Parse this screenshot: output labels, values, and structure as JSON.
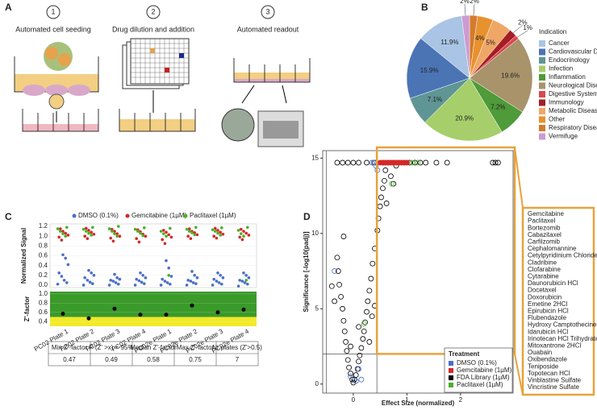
{
  "panel_labels": [
    "A",
    "B",
    "C",
    "D"
  ],
  "panel_a": {
    "steps": [
      {
        "number": "1",
        "label": "Automated cell seeding"
      },
      {
        "number": "2",
        "label": "Drug dilution and addition"
      },
      {
        "number": "3",
        "label": "Automated readout"
      }
    ]
  },
  "chart_data": [
    {
      "type": "pie",
      "legend_title": "Indication",
      "categories": [
        "Respiratory Disease",
        "Other",
        "Metabolic Disease",
        "Immunology",
        "Digestive System Disease",
        "Neurological Disease",
        "Inflammation",
        "Infection",
        "Endocrinology",
        "Cardiovascular Disease",
        "Cancer",
        "Vermifuge"
      ],
      "values": [
        2,
        4,
        5,
        2,
        1,
        19.6,
        7.2,
        20.9,
        7.1,
        15.9,
        11.9,
        2
      ],
      "value_labels": [
        "2%",
        "4%",
        "5%",
        "2%",
        "1%",
        "19.6%",
        "7.2%",
        "20.9%",
        "7.1%",
        "15.9%",
        "11.9%",
        "2%"
      ],
      "colors": [
        "#d47a2c",
        "#e8912f",
        "#efa766",
        "#a51d25",
        "#d8484f",
        "#a8936b",
        "#4f9a39",
        "#a6cf6b",
        "#5f9594",
        "#4b74b5",
        "#a9c4e4",
        "#cc9bd1"
      ],
      "legend_order": [
        10,
        9,
        8,
        7,
        6,
        5,
        4,
        3,
        2,
        1,
        0,
        11
      ]
    },
    {
      "type": "strip",
      "y_label": "Normalized Signal",
      "ylim": [
        -0.05,
        1.25
      ],
      "yticks": [
        {
          "value": 0,
          "label": "0.0"
        },
        0.2,
        0.4,
        0.6,
        0.8,
        {
          "value": 1,
          "label": "1.0"
        },
        1.2
      ],
      "series": [
        {
          "name": "DMSO (0.1%)",
          "color": "#4a6fc7",
          "values": [
            [
              0.02,
              0.05,
              0.1,
              0.18,
              0.25,
              0.42,
              0.55,
              0.62
            ],
            [
              0.0,
              0.03,
              0.06,
              0.1,
              0.15,
              0.2,
              0.25,
              0.3
            ],
            [
              0.0,
              0.02,
              0.05,
              0.08,
              0.1,
              0.12,
              0.15,
              0.22
            ],
            [
              0.0,
              0.03,
              0.06,
              0.09,
              0.12,
              0.15,
              0.2,
              0.25
            ],
            [
              0.0,
              0.02,
              0.05,
              0.08,
              0.12,
              0.18,
              0.35,
              0.5
            ],
            [
              0.0,
              0.03,
              0.05,
              0.08,
              0.1,
              0.15,
              0.2,
              0.28
            ],
            [
              0.0,
              0.02,
              0.05,
              0.08,
              0.12,
              0.15,
              0.2,
              0.25
            ],
            [
              -0.02,
              0.02,
              0.05,
              0.08,
              0.1,
              0.15,
              0.2,
              0.25
            ]
          ]
        },
        {
          "name": "Gemcitabine (1µM)",
          "color": "#d62728",
          "values": [
            [
              0.92,
              0.98,
              1.02,
              1.06,
              1.1,
              1.15
            ],
            [
              0.95,
              1.0,
              1.04,
              1.08,
              1.12,
              1.16
            ],
            [
              0.9,
              0.96,
              1.0,
              1.05,
              1.1,
              1.14
            ],
            [
              0.88,
              0.95,
              1.0,
              1.04,
              1.09,
              1.13
            ],
            [
              0.85,
              0.93,
              0.98,
              1.03,
              1.08,
              1.12
            ],
            [
              0.95,
              1.0,
              1.03,
              1.07,
              1.1,
              1.15
            ],
            [
              0.96,
              1.0,
              1.04,
              1.08,
              1.12,
              1.16
            ],
            [
              0.93,
              0.98,
              1.02,
              1.06,
              1.1,
              1.14
            ]
          ]
        },
        {
          "name": "Paclitaxel (1µM)",
          "color": "#4caf2a",
          "values": [
            [
              1.0,
              1.05,
              1.1,
              1.15,
              1.18
            ],
            [
              1.02,
              1.06,
              1.1,
              1.14,
              1.18
            ],
            [
              1.0,
              1.05,
              1.1,
              1.15,
              1.2
            ],
            [
              1.01,
              1.06,
              1.1,
              1.14,
              1.17
            ],
            [
              0.2,
              1.0,
              1.05,
              1.1,
              1.16
            ],
            [
              1.03,
              1.07,
              1.1,
              1.14,
              1.18
            ],
            [
              1.02,
              1.06,
              1.1,
              1.13,
              1.17
            ],
            [
              0.1,
              1.0,
              1.05,
              1.12,
              1.18
            ]
          ]
        }
      ]
    },
    {
      "type": "dot",
      "y_label": "Z'-factor",
      "ylim": [
        0.3,
        1.05
      ],
      "yticks": [
        0.4,
        0.6,
        0.8,
        {
          "value": 1,
          "label": "1.0"
        }
      ],
      "threshold": 0.5,
      "categories": [
        "PC02 Plate 1",
        "PC02 Plate 2",
        "PC02 Plate 3",
        "PC02 Plate 4",
        "PC02e Plate 1",
        "PC02e Plate 2",
        "PC02e Plate 3",
        "PC02e Plate 4"
      ],
      "values": [
        0.57,
        0.47,
        0.68,
        0.55,
        0.55,
        0.75,
        0.6,
        0.66
      ],
      "color": "#000000",
      "band_colors": [
        "#3a9a2a",
        "#f2ea2a"
      ]
    },
    {
      "type": "scatter",
      "x_label": "Effect Size (normalized)",
      "y_label": "Significance [-log10(padj)]",
      "legend_title": "Treatment",
      "xlim": [
        -0.57,
        2.98
      ],
      "ylim": [
        -0.6,
        15.5
      ],
      "xticks": [
        0,
        1,
        2
      ],
      "yticks": [
        0,
        5,
        10,
        15
      ],
      "vlines": [
        -0.5,
        0.44
      ],
      "hlines": [
        2
      ],
      "series": [
        {
          "name": "DMSO (0.1%)",
          "color": "#4a6fc7",
          "x": [
            0.35,
            0.38,
            0.42,
            0.45,
            0.1,
            -0.05,
            0.15,
            0.05,
            -0.35
          ],
          "y": [
            14.7,
            14.7,
            14.5,
            14.2,
            1.0,
            0.5,
            0.3,
            0.2,
            7.5
          ]
        },
        {
          "name": "Gemcitabine (1µM)",
          "color": "#d62728",
          "x": [
            0.5,
            0.55,
            0.6,
            0.65,
            0.7,
            0.75,
            0.8,
            0.85,
            0.9,
            0.95,
            1.0
          ],
          "y": [
            14.7,
            14.7,
            14.7,
            14.7,
            14.7,
            14.7,
            14.7,
            14.7,
            14.7,
            14.7,
            14.7
          ]
        },
        {
          "name": "FDA Library (1µM)",
          "color": "#000000",
          "x": [
            0,
            0.02,
            -0.02,
            0.05,
            -0.05,
            0.08,
            -0.08,
            0.1,
            -0.1,
            0.12,
            -0.12,
            0.15,
            -0.14,
            0.18,
            -0.16,
            0.2,
            -0.18,
            0.22,
            -0.2,
            0.25,
            -0.23,
            0.27,
            -0.26,
            0.3,
            -0.28,
            0.33,
            0.36,
            -0.3,
            0.4,
            -0.18,
            0.45,
            0.47,
            0.5,
            0.52,
            0.55,
            0.58,
            0.62,
            0.7,
            0.6,
            -0.35,
            -0.4,
            0.3,
            0.35,
            0.4,
            -0.05,
            0.1,
            -0.3,
            -0.2,
            -0.1,
            0,
            0.1,
            0.25,
            0.4,
            0.55,
            0.65,
            0.75,
            0.85,
            0.95,
            1.05,
            1.15,
            1.25,
            1.35,
            1.55,
            1.75,
            2.6,
            2.65,
            2.7,
            0.8,
            0.75
          ],
          "y": [
            0.1,
            0.3,
            0.3,
            0.6,
            0.7,
            1.0,
            1.1,
            1.5,
            1.6,
            1.9,
            2.2,
            2.4,
            2.8,
            3.0,
            3.5,
            3.5,
            4.2,
            4.1,
            5.0,
            4.8,
            5.8,
            5.5,
            6.6,
            6.2,
            7.5,
            7.0,
            8.0,
            8.4,
            9.0,
            9.8,
            10.2,
            11.0,
            11.8,
            12.4,
            13.0,
            13.5,
            12.0,
            13.8,
            14.2,
            5.5,
            6.5,
            2.8,
            4.5,
            5.2,
            2.5,
            3.8,
            14.7,
            14.7,
            14.7,
            14.7,
            14.7,
            14.7,
            14.7,
            14.7,
            14.7,
            14.7,
            14.7,
            14.7,
            14.7,
            14.7,
            14.7,
            14.7,
            14.7,
            14.7,
            14.7,
            14.7,
            14.7,
            14.5,
            13.3
          ]
        },
        {
          "name": "Paclitaxel (1µM)",
          "color": "#4caf2a",
          "x": [
            0.6,
            0.7,
            0.8,
            0.9,
            1.0,
            1.1,
            1.2,
            0.72,
            0.2
          ],
          "y": [
            14.7,
            14.7,
            14.7,
            14.7,
            14.7,
            14.7,
            14.7,
            13.3,
            4.0
          ]
        }
      ]
    }
  ],
  "panel_c_table": {
    "header": [
      "Min Z'-factor",
      "P (Z' >x) = 95%",
      "Median Z'-factor",
      "Max Z'-factor",
      "Nr plates (Z'>0.5)"
    ],
    "rows": [
      [
        "0.47",
        "0.49",
        "0.58",
        "0.75",
        "7"
      ]
    ]
  },
  "panel_d_hits": {
    "drugs": [
      "Gemcitabine",
      "Paclitaxel",
      "Bortezomib",
      "Cabazitaxel",
      "Carfilzomib",
      "Cephalomannine",
      "Cetylpyridinium Chloride",
      "Cladribine",
      "Clofarabine",
      "Cytarabine",
      "Daunorubicin HCl",
      "Docetaxel",
      "Doxorubicin",
      "Emetine 2HCl",
      "Epirubicin HCl",
      "Flubendazole",
      "Hydroxy Camptothecinel",
      "Idarubicin HCl",
      "Irinotecan HCl Trihydrate",
      "Mitoxantrone 2HCl",
      "Ouabain",
      "Oxibendazole",
      "Teniposide",
      "Topotecan HCl",
      "Vinblastine Sulfate",
      "Vincristine Sulfate"
    ]
  }
}
